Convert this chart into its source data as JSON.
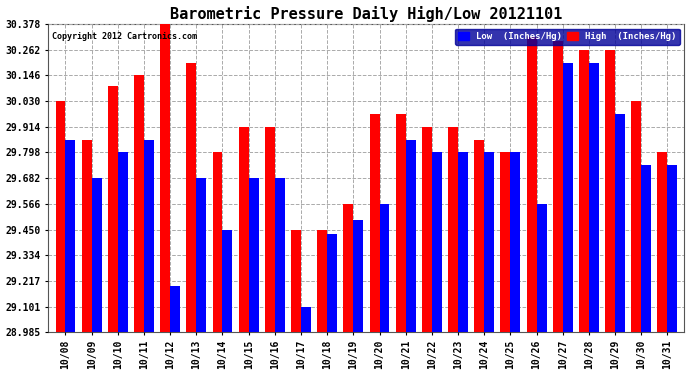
{
  "title": "Barometric Pressure Daily High/Low 20121101",
  "copyright": "Copyright 2012 Cartronics.com",
  "legend_low": "Low  (Inches/Hg)",
  "legend_high": "High  (Inches/Hg)",
  "categories": [
    "10/08",
    "10/09",
    "10/10",
    "10/11",
    "10/12",
    "10/13",
    "10/14",
    "10/15",
    "10/16",
    "10/17",
    "10/18",
    "10/19",
    "10/20",
    "10/21",
    "10/22",
    "10/23",
    "10/24",
    "10/25",
    "10/26",
    "10/27",
    "10/28",
    "10/29",
    "10/30",
    "10/31"
  ],
  "high_values": [
    30.03,
    29.856,
    30.1,
    30.146,
    30.378,
    30.204,
    29.798,
    29.914,
    29.914,
    29.45,
    29.45,
    29.566,
    29.97,
    29.97,
    29.914,
    29.914,
    29.856,
    29.798,
    30.32,
    30.3,
    30.262,
    30.262,
    30.03,
    29.798
  ],
  "low_values": [
    29.856,
    29.682,
    29.798,
    29.856,
    29.194,
    29.682,
    29.45,
    29.682,
    29.682,
    29.101,
    29.43,
    29.494,
    29.566,
    29.856,
    29.798,
    29.798,
    29.798,
    29.798,
    29.566,
    30.204,
    30.204,
    29.97,
    29.74,
    29.74
  ],
  "low_color": "#0000ff",
  "high_color": "#ff0000",
  "bg_color": "#ffffff",
  "grid_color": "#aaaaaa",
  "ymin": 28.985,
  "ymax": 30.378,
  "yticks": [
    28.985,
    29.101,
    29.217,
    29.334,
    29.45,
    29.566,
    29.682,
    29.798,
    29.914,
    30.03,
    30.146,
    30.262,
    30.378
  ],
  "title_fontsize": 11,
  "tick_fontsize": 7,
  "bar_width": 0.38,
  "legend_facecolor": "#000099",
  "legend_fontsize": 6.5
}
